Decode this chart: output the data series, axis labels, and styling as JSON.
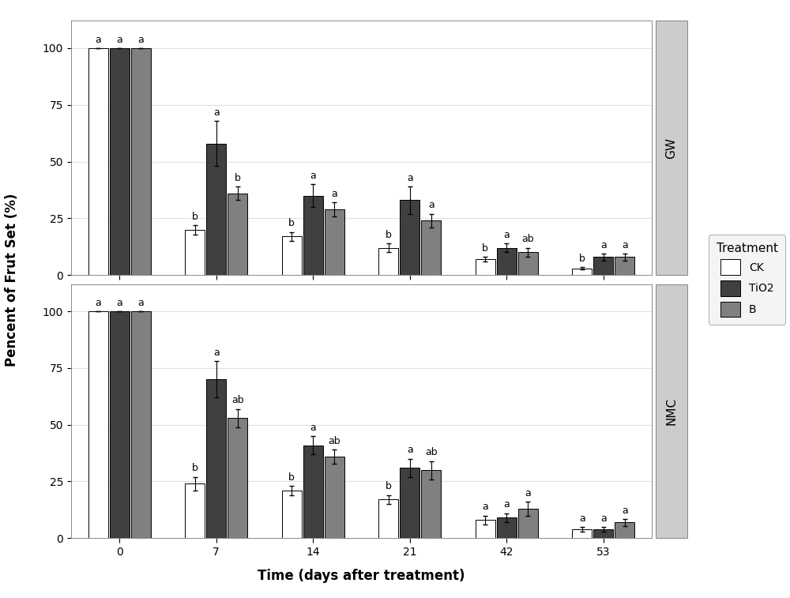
{
  "time_points": [
    0,
    7,
    14,
    21,
    42,
    53
  ],
  "GW": {
    "CK": [
      100,
      20,
      17,
      12,
      7,
      3
    ],
    "TiO2": [
      100,
      58,
      35,
      33,
      12,
      8
    ],
    "B": [
      100,
      36,
      29,
      24,
      10,
      8
    ]
  },
  "GW_err": {
    "CK": [
      0,
      2,
      2,
      2,
      1,
      0.5
    ],
    "TiO2": [
      0,
      10,
      5,
      6,
      2,
      1.5
    ],
    "B": [
      0,
      3,
      3,
      3,
      2,
      1.5
    ]
  },
  "GW_labels": {
    "0": [
      "a",
      "a",
      "a"
    ],
    "7": [
      "b",
      "a",
      "b"
    ],
    "14": [
      "b",
      "a",
      "a"
    ],
    "21": [
      "b",
      "a",
      "a"
    ],
    "42": [
      "b",
      "a",
      "ab"
    ],
    "53": [
      "b",
      "a",
      "a"
    ]
  },
  "NMC": {
    "CK": [
      100,
      24,
      21,
      17,
      8,
      4
    ],
    "TiO2": [
      100,
      70,
      41,
      31,
      9,
      4
    ],
    "B": [
      100,
      53,
      36,
      30,
      13,
      7
    ]
  },
  "NMC_err": {
    "CK": [
      0,
      3,
      2,
      2,
      2,
      1
    ],
    "TiO2": [
      0,
      8,
      4,
      4,
      2,
      1
    ],
    "B": [
      0,
      4,
      3,
      4,
      3,
      1.5
    ]
  },
  "NMC_labels": {
    "0": [
      "a",
      "a",
      "a"
    ],
    "7": [
      "b",
      "a",
      "ab"
    ],
    "14": [
      "b",
      "a",
      "ab"
    ],
    "21": [
      "b",
      "a",
      "ab"
    ],
    "42": [
      "a",
      "a",
      "a"
    ],
    "53": [
      "a",
      "a",
      "a"
    ]
  },
  "colors": {
    "CK": "#ffffff",
    "TiO2": "#404040",
    "B": "#808080"
  },
  "edgecolor": "#000000",
  "bar_width": 0.22,
  "ylabel": "Pencent of Frut Set (%)",
  "xlabel": "Time (days after treatment)",
  "ylim": [
    0,
    112
  ],
  "yticks": [
    0,
    25,
    50,
    75,
    100
  ],
  "panel_labels": [
    "GW",
    "NMC"
  ],
  "legend_title": "Treatment",
  "legend_entries": [
    "CK",
    "TiO2",
    "B"
  ],
  "grid_color": "#e0e0e0",
  "bg_color": "#ffffff",
  "panel_bg": "#ffffff",
  "strip_bg": "#cccccc",
  "strip_text_size": 11,
  "axis_label_size": 12,
  "tick_label_size": 10,
  "sig_label_size": 9,
  "legend_title_size": 11,
  "legend_text_size": 10
}
